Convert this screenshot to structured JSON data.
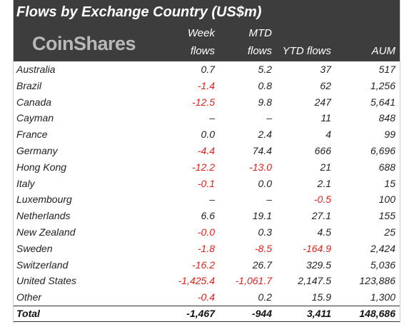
{
  "title": "Flows by Exchange Country (US$m)",
  "logo": "CoinShares",
  "columns": [
    [
      "Week",
      "flows"
    ],
    [
      "MTD",
      "flows"
    ],
    [
      "YTD flows"
    ],
    [
      "AUM"
    ]
  ],
  "rows": [
    [
      "Australia",
      "0.7",
      "5.2",
      "37",
      "517"
    ],
    [
      "Brazil",
      "-1.4",
      "0.8",
      "62",
      "1,256"
    ],
    [
      "Canada",
      "-12.5",
      "9.8",
      "247",
      "5,641"
    ],
    [
      "Cayman",
      "–",
      "–",
      "11",
      "848"
    ],
    [
      "France",
      "0.0",
      "2.4",
      "4",
      "99"
    ],
    [
      "Germany",
      "-4.4",
      "74.4",
      "666",
      "6,696"
    ],
    [
      "Hong Kong",
      "-12.2",
      "-13.0",
      "21",
      "688"
    ],
    [
      "Italy",
      "-0.1",
      "0.0",
      "2.1",
      "15"
    ],
    [
      "Luxembourg",
      "–",
      "–",
      "-0.5",
      "100"
    ],
    [
      "Netherlands",
      "6.6",
      "19.1",
      "27.1",
      "155"
    ],
    [
      "New Zealand",
      "-0.0",
      "0.3",
      "4.5",
      "25"
    ],
    [
      "Sweden",
      "-1.8",
      "-8.5",
      "-164.9",
      "2,424"
    ],
    [
      "Switzerland",
      "-16.2",
      "26.7",
      "329.5",
      "5,036"
    ],
    [
      "United States",
      "-1,425.4",
      "-1,061.7",
      "2,147.5",
      "123,886"
    ],
    [
      "Other",
      "-0.4",
      "0.2",
      "15.9",
      "1,300"
    ]
  ],
  "total": [
    "Total",
    "-1,467",
    "-944",
    "3,411",
    "148,686"
  ]
}
